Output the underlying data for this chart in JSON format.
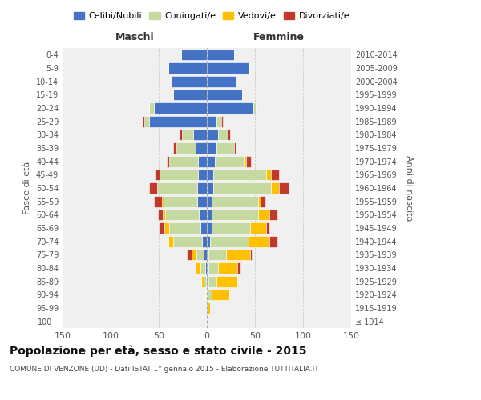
{
  "age_groups": [
    "100+",
    "95-99",
    "90-94",
    "85-89",
    "80-84",
    "75-79",
    "70-74",
    "65-69",
    "60-64",
    "55-59",
    "50-54",
    "45-49",
    "40-44",
    "35-39",
    "30-34",
    "25-29",
    "20-24",
    "15-19",
    "10-14",
    "5-9",
    "0-4"
  ],
  "birth_years": [
    "≤ 1914",
    "1915-1919",
    "1920-1924",
    "1925-1929",
    "1930-1934",
    "1935-1939",
    "1940-1944",
    "1945-1949",
    "1950-1954",
    "1955-1959",
    "1960-1964",
    "1965-1969",
    "1970-1974",
    "1975-1979",
    "1980-1984",
    "1985-1989",
    "1990-1994",
    "1995-1999",
    "2000-2004",
    "2005-2009",
    "2010-2014"
  ],
  "maschi": {
    "celibi": [
      0,
      0,
      0,
      1,
      2,
      3,
      5,
      7,
      8,
      10,
      10,
      9,
      9,
      12,
      14,
      60,
      55,
      35,
      37,
      40,
      27
    ],
    "coniugati": [
      0,
      0,
      1,
      2,
      5,
      8,
      30,
      32,
      35,
      35,
      42,
      40,
      30,
      20,
      12,
      5,
      5,
      0,
      0,
      0,
      0
    ],
    "vedovi": [
      0,
      0,
      1,
      3,
      5,
      5,
      5,
      5,
      3,
      2,
      0,
      0,
      0,
      0,
      0,
      0,
      0,
      0,
      0,
      0,
      0
    ],
    "divorziati": [
      0,
      0,
      0,
      0,
      0,
      5,
      0,
      5,
      5,
      8,
      8,
      5,
      3,
      3,
      2,
      2,
      0,
      0,
      0,
      0,
      0
    ]
  },
  "femmine": {
    "nubili": [
      0,
      0,
      0,
      2,
      2,
      2,
      3,
      5,
      5,
      5,
      7,
      7,
      8,
      10,
      12,
      10,
      48,
      37,
      30,
      44,
      28
    ],
    "coniugate": [
      0,
      1,
      5,
      8,
      10,
      18,
      40,
      40,
      48,
      48,
      60,
      55,
      30,
      18,
      10,
      5,
      3,
      0,
      0,
      0,
      0
    ],
    "vedove": [
      0,
      2,
      18,
      22,
      20,
      25,
      22,
      17,
      12,
      3,
      8,
      5,
      3,
      0,
      0,
      0,
      0,
      0,
      0,
      0,
      0
    ],
    "divorziate": [
      0,
      0,
      0,
      0,
      3,
      2,
      8,
      3,
      8,
      5,
      10,
      8,
      5,
      2,
      2,
      2,
      0,
      0,
      0,
      0,
      0
    ]
  },
  "color_celibi": "#4472c4",
  "color_coniugati": "#c5d9a0",
  "color_vedovi": "#ffc000",
  "color_divorziati": "#c0392b",
  "xlim": 150,
  "title": "Popolazione per età, sesso e stato civile - 2015",
  "subtitle": "COMUNE DI VENZONE (UD) - Dati ISTAT 1° gennaio 2015 - Elaborazione TUTTITALIA.IT",
  "ylabel_left": "Fasce di età",
  "ylabel_right": "Anni di nascita",
  "xlabel_maschi": "Maschi",
  "xlabel_femmine": "Femmine",
  "legend_labels": [
    "Celibi/Nubili",
    "Coniugati/e",
    "Vedovi/e",
    "Divorziati/e"
  ],
  "bg_color": "#f0f0f0"
}
